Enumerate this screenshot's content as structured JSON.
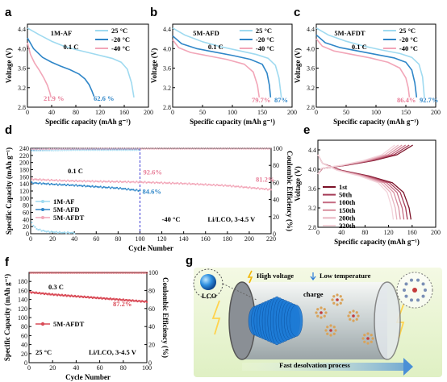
{
  "colors": {
    "c25": "#9fdaf0",
    "cm20": "#2f86c8",
    "cm40": "#f2a6b8",
    "ce_1M": "#9fdaf0",
    "ce_5M": "#2f86c8",
    "ce_5MT": "#f2a6b8",
    "cyc": [
      "#7b1228",
      "#a43a55",
      "#c56b82",
      "#d8909f",
      "#e8b4c0",
      "#f3d4db"
    ],
    "red_series": "#d94b57",
    "ann_pink": "#e77c97",
    "ann_blue": "#2f86c8",
    "divider": "#3b3bd6",
    "tube": "#c9cfd5",
    "bg_green": "#e9f4cf"
  },
  "panels": {
    "a": {
      "label": "a",
      "title": "1M-AF",
      "rate": "0.1 C",
      "pct_pink": "21.9 %",
      "pct_blue": "62.6 %"
    },
    "b": {
      "label": "b",
      "title": "5M-AFD",
      "rate": "0.1 C",
      "pct_pink": "79.7%",
      "pct_blue": "87%"
    },
    "c": {
      "label": "c",
      "title": "5M-AFDT",
      "rate": "0.1 C",
      "pct_pink": "86.4%",
      "pct_blue": "92.7%"
    },
    "d": {
      "label": "d",
      "rate": "0.1 C",
      "pct_pink1": "92.6%",
      "pct_pink2": "81.2%",
      "pct_blue": "84.6%",
      "temp": "-40 °C",
      "system": "Li/LCO, 3-4.5 V"
    },
    "e": {
      "label": "e"
    },
    "f": {
      "label": "f",
      "rate": "0.3 C",
      "pct": "87.2%",
      "temp": "25 °C",
      "system": "Li/LCO, 3-4.5 V"
    },
    "g": {
      "label": "g",
      "lco": "LCO",
      "high_voltage": "High voltage",
      "low_temp": "Low temperature",
      "charge": "charge",
      "process": "Fast desolvation process"
    }
  },
  "legend_temps": [
    "25 °C",
    "-20 °C",
    "-40 °C"
  ],
  "axes": {
    "voltage": "Voltage (V)",
    "spec_cap_x": "Specific capacity (mAh g⁻¹)",
    "spec_cap_y": "Specific Capacity (mAh g⁻¹)",
    "coul_eff": "Coulombic Efficiency (%)",
    "cycle": "Cycle Number"
  },
  "chart_data": [
    {
      "type": "line",
      "panel": "a",
      "xlabel": "Specific capacity (mAh g⁻¹)",
      "ylabel": "Voltage (V)",
      "xlim": [
        0,
        200
      ],
      "ylim": [
        2.8,
        4.5
      ],
      "xticks": [
        0,
        40,
        80,
        120,
        160,
        200
      ],
      "yticks": [
        2.8,
        3.2,
        3.6,
        4.0,
        4.4
      ],
      "series": [
        {
          "name": "25 °C",
          "color": "#9fdaf0",
          "x": [
            0,
            20,
            40,
            60,
            80,
            100,
            120,
            140,
            155,
            165,
            172,
            176
          ],
          "y": [
            4.42,
            4.28,
            4.15,
            4.05,
            3.98,
            3.92,
            3.86,
            3.8,
            3.72,
            3.58,
            3.3,
            3.0
          ]
        },
        {
          "name": "-20 °C",
          "color": "#2f86c8",
          "x": [
            0,
            10,
            25,
            40,
            55,
            70,
            85,
            95,
            102,
            107,
            110
          ],
          "y": [
            4.22,
            4.0,
            3.82,
            3.72,
            3.64,
            3.57,
            3.48,
            3.38,
            3.26,
            3.12,
            3.02
          ]
        },
        {
          "name": "-40 °C",
          "color": "#f2a6b8",
          "x": [
            0,
            5,
            12,
            20,
            27,
            33,
            37,
            39
          ],
          "y": [
            4.12,
            3.88,
            3.7,
            3.55,
            3.4,
            3.25,
            3.1,
            3.0
          ]
        }
      ]
    },
    {
      "type": "line",
      "panel": "b",
      "xlabel": "Specific capacity (mAh g⁻¹)",
      "ylabel": "Voltage (V)",
      "xlim": [
        0,
        200
      ],
      "ylim": [
        2.8,
        4.5
      ],
      "xticks": [
        0,
        50,
        100,
        150,
        200
      ],
      "yticks": [
        2.8,
        3.2,
        3.6,
        4.0,
        4.4
      ],
      "series": [
        {
          "name": "25 °C",
          "color": "#9fdaf0",
          "x": [
            0,
            20,
            50,
            80,
            110,
            140,
            160,
            172,
            178,
            182
          ],
          "y": [
            4.42,
            4.28,
            4.14,
            4.04,
            3.96,
            3.88,
            3.8,
            3.66,
            3.4,
            3.0
          ]
        },
        {
          "name": "-20 °C",
          "color": "#2f86c8",
          "x": [
            0,
            15,
            40,
            70,
            100,
            130,
            150,
            158,
            162,
            164
          ],
          "y": [
            4.26,
            4.1,
            4.0,
            3.93,
            3.86,
            3.78,
            3.68,
            3.5,
            3.25,
            3.0
          ]
        },
        {
          "name": "-40 °C",
          "color": "#f2a6b8",
          "x": [
            0,
            10,
            30,
            60,
            90,
            120,
            135,
            142,
            145
          ],
          "y": [
            4.18,
            4.02,
            3.92,
            3.85,
            3.78,
            3.68,
            3.52,
            3.25,
            3.0
          ]
        }
      ]
    },
    {
      "type": "line",
      "panel": "c",
      "xlabel": "Specific capacity (mAh g⁻¹)",
      "ylabel": "Voltage (V)",
      "xlim": [
        0,
        200
      ],
      "ylim": [
        2.8,
        4.5
      ],
      "xticks": [
        0,
        50,
        100,
        150,
        200
      ],
      "yticks": [
        2.8,
        3.2,
        3.6,
        4.0,
        4.4
      ],
      "series": [
        {
          "name": "25 °C",
          "color": "#9fdaf0",
          "x": [
            0,
            20,
            50,
            80,
            110,
            140,
            160,
            172,
            178,
            181
          ],
          "y": [
            4.42,
            4.28,
            4.15,
            4.05,
            3.97,
            3.9,
            3.82,
            3.68,
            3.42,
            3.0
          ]
        },
        {
          "name": "-20 °C",
          "color": "#2f86c8",
          "x": [
            0,
            15,
            40,
            70,
            100,
            130,
            150,
            160,
            165,
            168
          ],
          "y": [
            4.28,
            4.12,
            4.02,
            3.95,
            3.88,
            3.81,
            3.72,
            3.56,
            3.3,
            3.0
          ]
        },
        {
          "name": "-40 °C",
          "color": "#f2a6b8",
          "x": [
            0,
            10,
            30,
            60,
            90,
            120,
            140,
            150,
            154,
            156
          ],
          "y": [
            4.2,
            4.05,
            3.95,
            3.88,
            3.81,
            3.72,
            3.6,
            3.4,
            3.2,
            3.0
          ]
        }
      ]
    },
    {
      "type": "scatter",
      "panel": "d",
      "xlabel": "Cycle Number",
      "ylabel": "Specific Capacity (mAh g⁻¹)",
      "y2label": "Coulombic Efficiency (%)",
      "xlim": [
        0,
        220
      ],
      "ylim": [
        0,
        240
      ],
      "y2lim": [
        0,
        100
      ],
      "xticks": [
        0,
        20,
        40,
        60,
        80,
        100,
        120,
        140,
        160,
        180,
        200,
        220
      ],
      "yticks": [
        0,
        20,
        40,
        60,
        80,
        100,
        120,
        140,
        160,
        180,
        200,
        220,
        240
      ],
      "y2ticks": [
        0,
        20,
        40,
        60,
        80,
        100
      ],
      "series": [
        {
          "name": "1M-AF",
          "color": "#9fdaf0",
          "capacity": {
            "x": [
              1,
              5,
              10,
              15,
              20,
              25,
              30,
              35,
              40
            ],
            "y": [
              30,
              14,
              9,
              6,
              5,
              4,
              3,
              3,
              2
            ]
          },
          "ce": {
            "x": [
              1,
              20,
              40,
              60,
              80,
              100
            ],
            "y": [
              97,
              97.5,
              98,
              98,
              98,
              98
            ]
          }
        },
        {
          "name": "5M-AFD",
          "color": "#2f86c8",
          "capacity": {
            "x": [
              1,
              20,
              40,
              60,
              80,
              100
            ],
            "y": [
              143,
              139,
              136,
              132,
              128,
              121
            ]
          },
          "ce": {
            "x": [
              1,
              20,
              40,
              60,
              80,
              100
            ],
            "y": [
              98.5,
              99,
              99,
              99,
              99,
              99
            ]
          }
        },
        {
          "name": "5M-AFDT",
          "color": "#f2a6b8",
          "capacity": {
            "x": [
              1,
              30,
              60,
              100,
              140,
              180,
              220
            ],
            "y": [
              153,
              149,
              147,
              145,
              141,
              135,
              124
            ]
          },
          "ce": {
            "x": [
              1,
              60,
              120,
              180,
              220
            ],
            "y": [
              99,
              99.4,
              99.5,
              99.5,
              99.5
            ]
          }
        }
      ],
      "divider_x": 100
    },
    {
      "type": "line",
      "panel": "e",
      "xlabel": "Specific capacity (mAh g⁻¹)",
      "ylabel": "Voltage (V)",
      "xlim": [
        0,
        200
      ],
      "ylim": [
        2.8,
        4.6
      ],
      "xticks": [
        0,
        40,
        80,
        120,
        160,
        200
      ],
      "yticks": [
        2.8,
        3.2,
        3.6,
        4.0,
        4.4
      ],
      "series": [
        {
          "name": "1st",
          "capacity": 158
        },
        {
          "name": "50th",
          "capacity": 152
        },
        {
          "name": "100th",
          "capacity": 146
        },
        {
          "name": "150th",
          "capacity": 140
        },
        {
          "name": "200th",
          "capacity": 134
        },
        {
          "name": "220th",
          "capacity": 128
        }
      ]
    },
    {
      "type": "scatter",
      "panel": "f",
      "xlabel": "Cycle Number",
      "ylabel": "Specific Capacity (mAh g⁻¹)",
      "y2label": "Coulombic Efficiency (%)",
      "xlim": [
        0,
        100
      ],
      "ylim": [
        0,
        200
      ],
      "y2lim": [
        0,
        100
      ],
      "xticks": [
        0,
        20,
        40,
        60,
        80,
        100
      ],
      "yticks": [
        0,
        20,
        40,
        60,
        80,
        100,
        120,
        140,
        160,
        180
      ],
      "y2ticks": [
        0,
        20,
        40,
        60,
        80,
        100
      ],
      "series": [
        {
          "name": "5M-AFDT",
          "color": "#d94b57",
          "capacity": {
            "x": [
              1,
              20,
              40,
              60,
              80,
              100
            ],
            "y": [
              156,
              151,
              147,
              143,
              139,
              135
            ]
          },
          "ce": {
            "x": [
              1,
              50,
              100
            ],
            "y": [
              99.5,
              99.6,
              99.6
            ]
          }
        }
      ]
    }
  ]
}
